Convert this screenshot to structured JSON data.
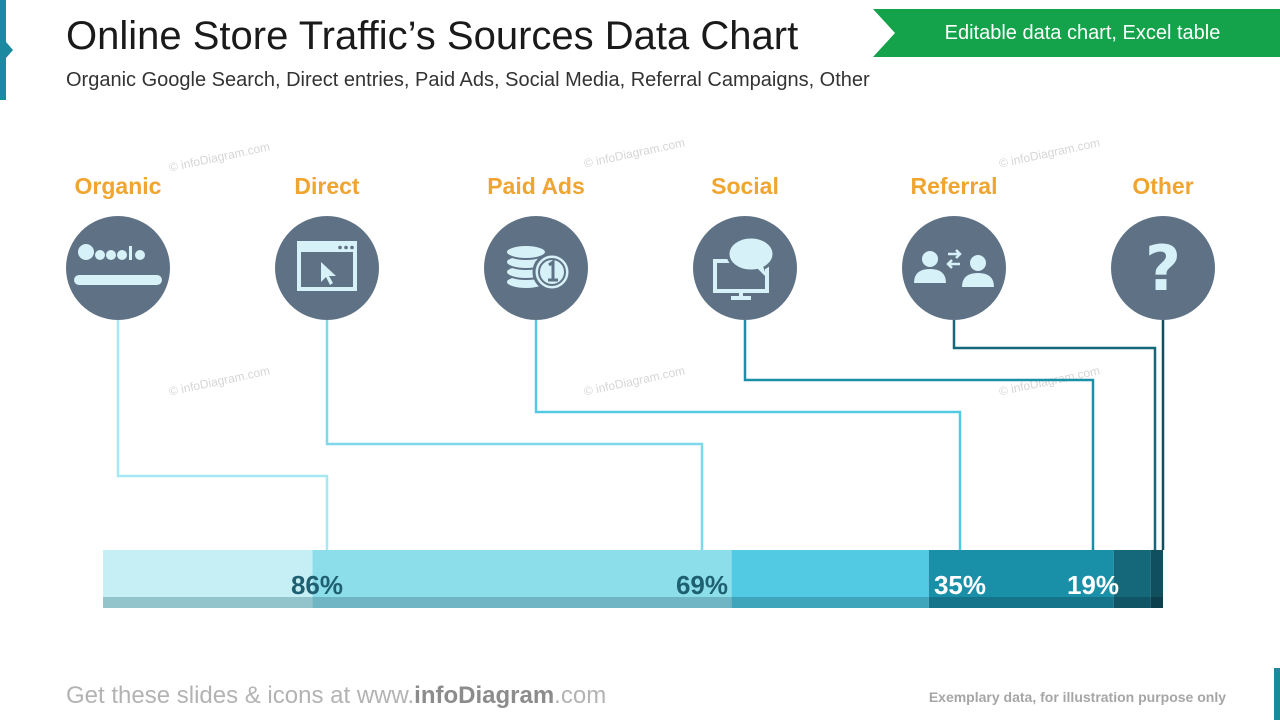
{
  "header": {
    "title": "Online Store Traffic’s Sources Data Chart",
    "subtitle": "Organic Google Search, Direct entries, Paid Ads, Social Media, Referral Campaigns, Other",
    "badge": "Editable data chart, Excel table"
  },
  "watermark": "© infoDiagram.com",
  "footer": {
    "left_prefix": "Get these slides & icons at www.",
    "left_brand": "infoDiagram",
    "left_suffix": ".com",
    "right": "Exemplary data, for illustration purpose only"
  },
  "colors": {
    "label": "#f0a530",
    "icon_circle": "#5f7285",
    "icon_glyph": "#d6f1f7",
    "bar_text": "#1f5f72",
    "bar_text_light": "#ffffff"
  },
  "chart_data": {
    "type": "bar",
    "orientation": "horizontal-stacked-cumulative",
    "categories": [
      "Organic",
      "Direct",
      "Paid Ads",
      "Social",
      "Referral",
      "Other"
    ],
    "icons": [
      "google-search-icon",
      "browser-cursor-icon",
      "coins-icon",
      "monitor-chat-icon",
      "people-exchange-icon",
      "question-mark-icon"
    ],
    "values": [
      86,
      69,
      35,
      19,
      4,
      1
    ],
    "labels": [
      "86%",
      "69%",
      "35%",
      "19%",
      "",
      ""
    ],
    "colors": [
      "#c6eff5",
      "#8ddeeb",
      "#52cae3",
      "#1a8fa8",
      "#14687a",
      "#0f4f5e"
    ],
    "line_colors": [
      "#a6e8f2",
      "#7ed8ea",
      "#52cae3",
      "#1a8fa8",
      "#14687a",
      "#0f4f5e"
    ],
    "xlim": [
      0,
      100
    ]
  }
}
